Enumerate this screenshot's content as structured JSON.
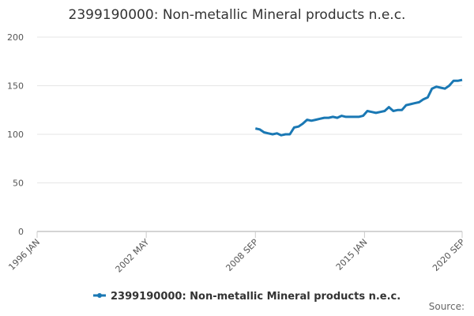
{
  "chart_data": {
    "type": "line",
    "title": "2399190000: Non-metallic Mineral products n.e.c.",
    "source": "Source:",
    "x": [
      "2008-09",
      "2008-12",
      "2009-03",
      "2009-06",
      "2009-09",
      "2009-12",
      "2010-03",
      "2010-06",
      "2010-09",
      "2010-12",
      "2011-03",
      "2011-06",
      "2011-09",
      "2011-12",
      "2012-03",
      "2012-06",
      "2012-09",
      "2012-12",
      "2013-03",
      "2013-06",
      "2013-09",
      "2013-12",
      "2014-03",
      "2014-06",
      "2014-09",
      "2014-12",
      "2015-03",
      "2015-06",
      "2015-09",
      "2015-12",
      "2016-03",
      "2016-06",
      "2016-09",
      "2016-12",
      "2017-03",
      "2017-06",
      "2017-09",
      "2017-12",
      "2018-03",
      "2018-06",
      "2018-09",
      "2018-12",
      "2019-03",
      "2019-06",
      "2019-09",
      "2019-12",
      "2020-03",
      "2020-06",
      "2020-09"
    ],
    "series": [
      {
        "name": "2399190000: Non-metallic Mineral products n.e.c.",
        "color": "#1a78b4",
        "values": [
          106,
          105,
          102,
          101,
          100,
          101,
          99,
          100,
          100,
          107,
          108,
          111,
          115,
          114,
          115,
          116,
          117,
          117,
          118,
          117,
          119,
          118,
          118,
          118,
          118,
          119,
          124,
          123,
          122,
          123,
          124,
          128,
          124,
          125,
          125,
          130,
          131,
          132,
          133,
          136,
          138,
          147,
          149,
          148,
          147,
          150,
          155,
          155,
          156
        ]
      }
    ],
    "xlim": [
      "1996-01",
      "2020-09"
    ],
    "xticks": [
      {
        "value": "1996-01",
        "label": "1996 JAN"
      },
      {
        "value": "2002-05",
        "label": "2002 MAY"
      },
      {
        "value": "2008-09",
        "label": "2008 SEP"
      },
      {
        "value": "2015-01",
        "label": "2015 JAN"
      },
      {
        "value": "2020-09",
        "label": "2020 SEP"
      }
    ],
    "ylim": [
      0,
      200
    ],
    "yticks": [
      0,
      50,
      100,
      150,
      200
    ],
    "grid": true
  }
}
